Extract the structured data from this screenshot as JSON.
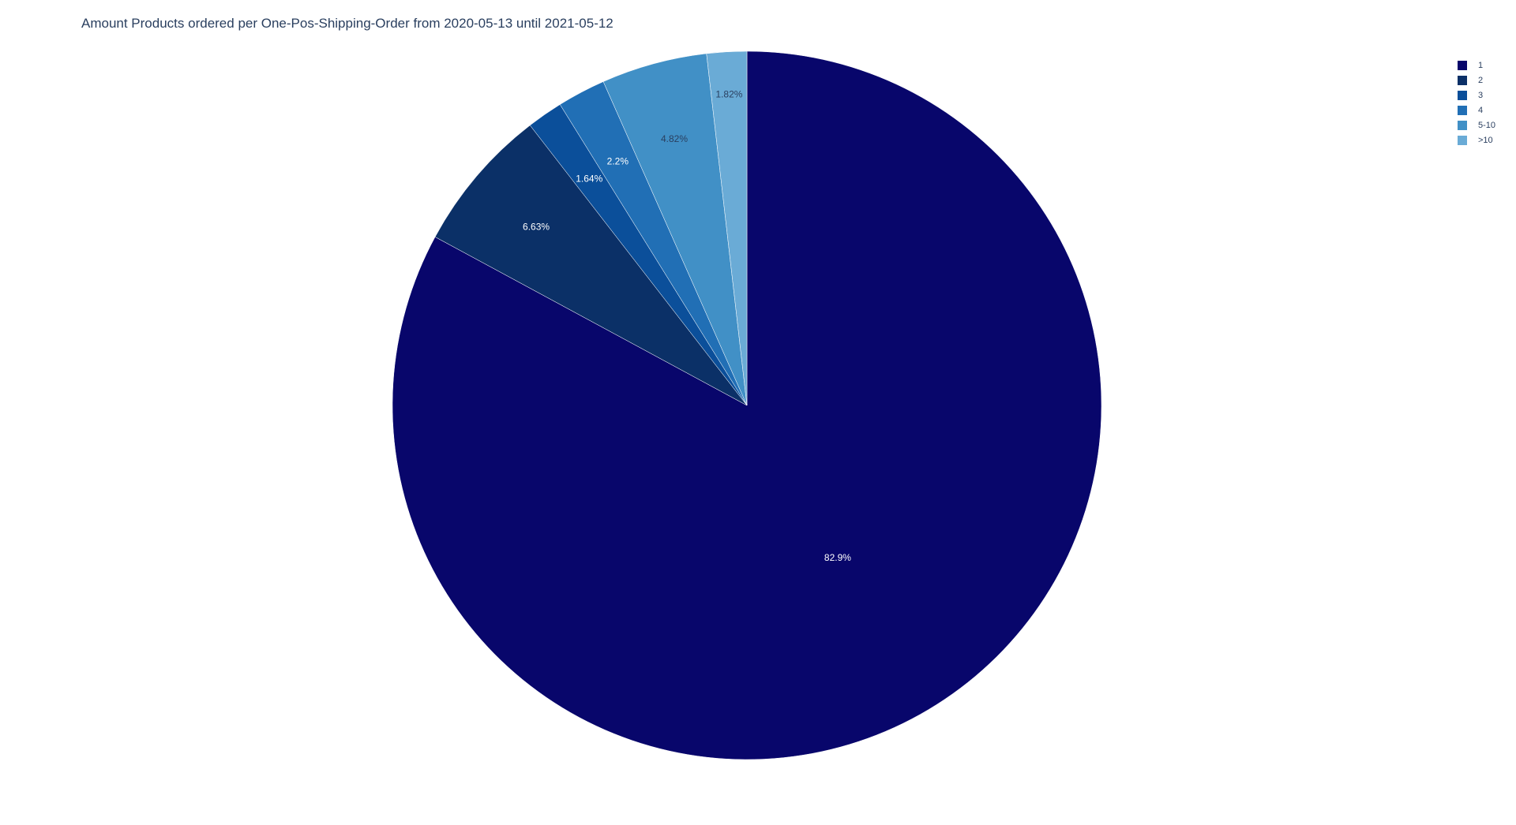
{
  "chart_data": {
    "type": "pie",
    "title": "Amount Products ordered per One-Pos-Shipping-Order from 2020-05-13 until 2021-05-12",
    "direction": "clockwise",
    "start_angle_deg": 0,
    "legend_position": "top-right",
    "labels": [
      "1",
      "2",
      "3",
      "4",
      "5-10",
      ">10"
    ],
    "values": [
      82.9,
      6.63,
      1.64,
      2.2,
      4.82,
      1.82
    ],
    "text_labels": [
      "82.9%",
      "6.63%",
      "1.64%",
      "2.2%",
      "4.82%",
      "1.82%"
    ],
    "colors": [
      "#08066b",
      "#0b3067",
      "#0b4f9a",
      "#216fb5",
      "#4190c6",
      "#6aabd6"
    ],
    "label_colors": [
      "#ffffff",
      "#ffffff",
      "#ffffff",
      "#ffffff",
      "#2a3f5f",
      "#2a3f5f"
    ]
  }
}
